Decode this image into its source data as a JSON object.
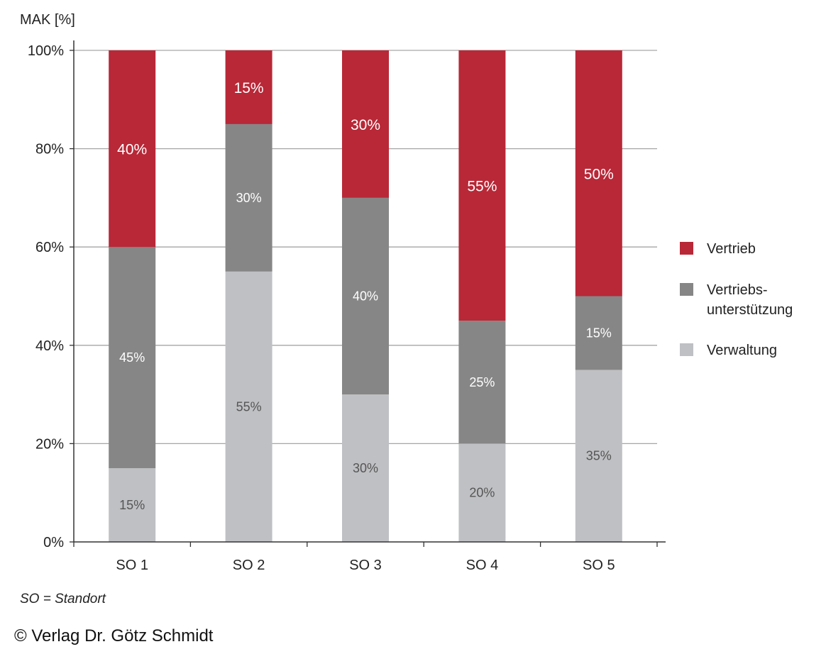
{
  "chart_data": {
    "type": "bar",
    "stacked": true,
    "ylabel": "MAK [%]",
    "ylim": [
      0,
      100
    ],
    "yticks": [
      "0%",
      "20%",
      "40%",
      "60%",
      "80%",
      "100%"
    ],
    "ytick_values": [
      0,
      20,
      40,
      60,
      80,
      100
    ],
    "grid": true,
    "categories": [
      "SO 1",
      "SO 2",
      "SO 3",
      "SO 4",
      "SO 5"
    ],
    "series": [
      {
        "name": "Verwaltung",
        "color": "#BFC0C3",
        "label_color": "#555555",
        "values": [
          15,
          55,
          30,
          20,
          35
        ]
      },
      {
        "name": "Vertriebsunterstützung",
        "legend_lines": [
          "Vertriebs-",
          "unterstützung"
        ],
        "color": "#868686",
        "label_color": "#FFFFFF",
        "values": [
          45,
          30,
          40,
          25,
          15
        ]
      },
      {
        "name": "Vertrieb",
        "color": "#B82837",
        "label_color": "#FFFFFF",
        "values": [
          40,
          15,
          30,
          55,
          50
        ]
      }
    ],
    "legend_position": "right",
    "footnote": "SO = Standort"
  },
  "copyright": "© Verlag Dr. Götz Schmidt"
}
